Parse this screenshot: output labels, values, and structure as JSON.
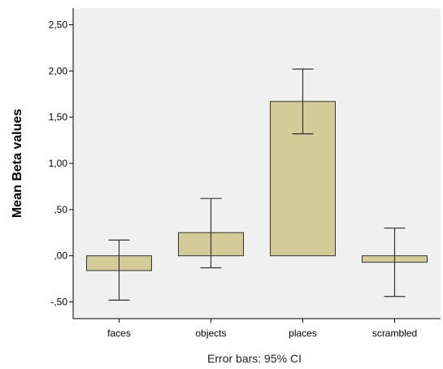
{
  "chart_data": {
    "type": "bar",
    "categories": [
      "faces",
      "objects",
      "places",
      "scrambled"
    ],
    "series": [
      {
        "values": [
          -0.16,
          0.25,
          1.67,
          -0.07
        ],
        "ci_lower": [
          -0.48,
          -0.13,
          1.32,
          -0.44
        ],
        "ci_upper": [
          0.17,
          0.62,
          2.02,
          0.3
        ]
      }
    ],
    "title": "",
    "xlabel": "",
    "ylabel": "Mean Beta values",
    "ylim": [
      -0.68,
      2.68
    ],
    "yticks": [
      -0.5,
      0.0,
      0.5,
      1.0,
      1.5,
      2.0,
      2.5
    ],
    "ytick_labels": [
      "-,50",
      ",00",
      ",50",
      "1,00",
      "1,50",
      "2,00",
      "2,50"
    ],
    "footnote": "Error bars: 95% CI",
    "grid": false,
    "legend": "none",
    "colors": {
      "bar_fill": "#d3cc98",
      "bar_edge": "#333333",
      "plot_background": "#f0f0f0",
      "error_bar": "#333333"
    }
  }
}
